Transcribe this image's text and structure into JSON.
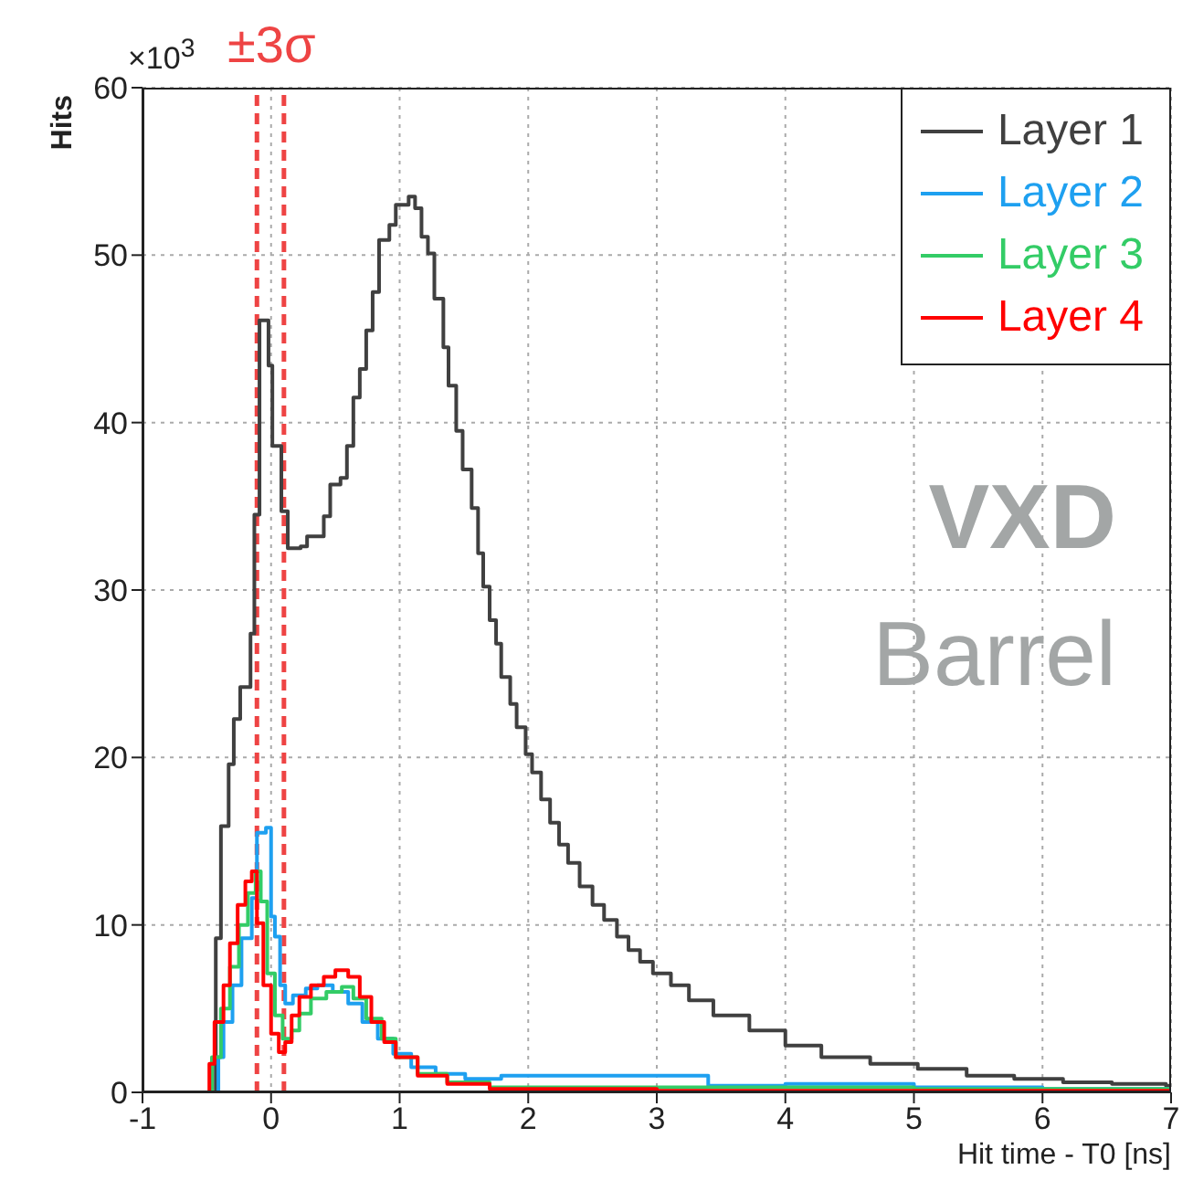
{
  "chart_data": {
    "type": "step",
    "xlabel": "Hit time - T0 [ns]",
    "ylabel": "Hits",
    "xlim": [
      -1,
      7
    ],
    "xticks": [
      -1,
      0,
      1,
      2,
      3,
      4,
      5,
      6,
      7
    ],
    "ylim": [
      0,
      60
    ],
    "yticks": [
      0,
      10,
      20,
      30,
      40,
      50,
      60
    ],
    "grid": true,
    "legend": "top right",
    "marker": "none",
    "line_style": "solid",
    "annotations": [
      "×10$^{3}$",
      "VXD",
      "Barrel"
    ],
    "ref_lines": [
      {
        "axis": "x",
        "value": -0.11,
        "label": "±3σ",
        "color": "#ee4444",
        "line_style": "dashed"
      },
      {
        "axis": "x",
        "value": 0.1,
        "color": "#ee4444",
        "line_style": "dashed"
      }
    ],
    "series": [
      {
        "name": "Layer 1",
        "color": "#404040",
        "x": [
          -1,
          -0.57,
          -0.43,
          -0.39,
          -0.33,
          -0.29,
          -0.24,
          -0.16,
          -0.13,
          -0.09,
          -0.02,
          0.01,
          0.08,
          0.13,
          0.23,
          0.28,
          0.41,
          0.46,
          0.54,
          0.59,
          0.64,
          0.69,
          0.74,
          0.79,
          0.84,
          0.92,
          0.97,
          1.07,
          1.12,
          1.17,
          1.22,
          1.27,
          1.34,
          1.38,
          1.44,
          1.49,
          1.56,
          1.61,
          1.65,
          1.7,
          1.75,
          1.79,
          1.86,
          1.91,
          1.98,
          2.03,
          2.1,
          2.17,
          2.24,
          2.31,
          2.4,
          2.5,
          2.59,
          2.69,
          2.78,
          2.87,
          2.97,
          3.11,
          3.25,
          3.44,
          3.72,
          4,
          4.28,
          4.66,
          5.03,
          5.41,
          5.78,
          6.16,
          6.54,
          6.96,
          7
        ],
        "values": [
          0,
          0,
          9.2,
          15.9,
          19.6,
          22.3,
          24.2,
          27.4,
          34.5,
          46.1,
          43.4,
          38.6,
          34.7,
          32.5,
          32.6,
          33.2,
          34.4,
          36.3,
          36.7,
          38.6,
          41.5,
          43.2,
          45.5,
          47.8,
          50.9,
          51.8,
          53,
          53.5,
          52.8,
          51.1,
          50.1,
          47.4,
          44.5,
          42.2,
          39.5,
          37.2,
          34.9,
          32.2,
          30.2,
          28.2,
          26.8,
          24.8,
          23.2,
          21.8,
          20.2,
          19.1,
          17.5,
          16.1,
          14.8,
          13.7,
          12.3,
          11.2,
          10.3,
          9.3,
          8.5,
          7.8,
          7.1,
          6.4,
          5.5,
          4.6,
          3.7,
          2.8,
          2.1,
          1.7,
          1.4,
          1,
          0.8,
          0.6,
          0.5,
          0.4,
          0.4
        ]
      },
      {
        "name": "Layer 2",
        "color": "#1ea0f0",
        "x": [
          -1,
          -0.48,
          -0.41,
          -0.37,
          -0.3,
          -0.23,
          -0.15,
          -0.11,
          -0.04,
          0,
          0.03,
          0.07,
          0.11,
          0.17,
          0.27,
          0.36,
          0.48,
          0.6,
          0.71,
          0.83,
          0.95,
          1.09,
          1.28,
          1.51,
          1.79,
          2.8,
          3.4,
          4,
          5,
          6,
          7
        ],
        "values": [
          0,
          0,
          2.1,
          4.2,
          6.4,
          9.2,
          11.6,
          15.5,
          15.8,
          10.5,
          9.3,
          6.4,
          5.3,
          5.8,
          6.2,
          6.4,
          6,
          5.3,
          4.2,
          3.2,
          2.3,
          1.5,
          1.1,
          0.8,
          1,
          1,
          0.4,
          0.5,
          0.3,
          0.2,
          0.2
        ]
      },
      {
        "name": "Layer 3",
        "color": "#33cc66",
        "x": [
          -1,
          -0.55,
          -0.46,
          -0.39,
          -0.32,
          -0.25,
          -0.18,
          -0.12,
          -0.08,
          -0.03,
          0.03,
          0.09,
          0.16,
          0.22,
          0.31,
          0.43,
          0.55,
          0.64,
          0.74,
          0.86,
          0.97,
          1.14,
          1.37,
          1.7,
          3,
          5,
          7
        ],
        "values": [
          0,
          0,
          2.1,
          5,
          7.5,
          10,
          11.9,
          13.2,
          11.4,
          7.1,
          4.6,
          3.2,
          3.7,
          4.7,
          5.6,
          6,
          6.3,
          5.6,
          4.4,
          3.2,
          2.1,
          1.1,
          0.6,
          0.3,
          0.3,
          0.2,
          0.2
        ]
      },
      {
        "name": "Layer 4",
        "color": "#ff0000",
        "x": [
          -1,
          -0.55,
          -0.48,
          -0.44,
          -0.37,
          -0.32,
          -0.26,
          -0.2,
          -0.15,
          -0.11,
          -0.06,
          0,
          0.06,
          0.11,
          0.16,
          0.22,
          0.31,
          0.41,
          0.5,
          0.6,
          0.69,
          0.78,
          0.88,
          0.97,
          1.14,
          1.37,
          1.7,
          3,
          7
        ],
        "values": [
          0,
          0,
          1.7,
          4.2,
          6.4,
          8.9,
          11.2,
          12.6,
          13.2,
          10.1,
          6.4,
          3.5,
          2.4,
          3,
          4.6,
          5.7,
          6.4,
          6.9,
          7.3,
          6.9,
          5.7,
          4.2,
          3,
          2.1,
          1,
          0.5,
          0.2,
          0.1,
          0.1
        ]
      }
    ]
  }
}
